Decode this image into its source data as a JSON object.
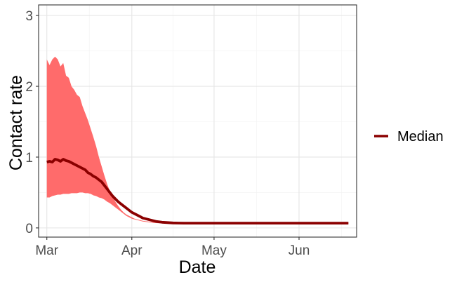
{
  "chart_data": {
    "type": "line",
    "xlabel": "Date",
    "ylabel": "Contact rate",
    "x_start": "2020-03-01",
    "xlim": [
      "2020-02-27",
      "2020-06-22"
    ],
    "ylim": [
      -0.13,
      3.15
    ],
    "x_ticks": [
      {
        "date": "2020-03-01",
        "label": "Mar"
      },
      {
        "date": "2020-04-01",
        "label": "Apr"
      },
      {
        "date": "2020-05-01",
        "label": "May"
      },
      {
        "date": "2020-06-01",
        "label": "Jun"
      }
    ],
    "y_ticks": [
      {
        "value": 0,
        "label": "0"
      },
      {
        "value": 1,
        "label": "1"
      },
      {
        "value": 2,
        "label": "2"
      },
      {
        "value": 3,
        "label": "3"
      }
    ],
    "grid": true,
    "legend": {
      "position": "right",
      "entries": [
        {
          "label": "Median",
          "color": "#8b0000"
        }
      ]
    },
    "series": [
      {
        "name": "Median",
        "color": "#8b0000",
        "band_color": "#ff6b6b",
        "x": [
          "2020-03-01",
          "2020-03-02",
          "2020-03-03",
          "2020-03-04",
          "2020-03-05",
          "2020-03-06",
          "2020-03-07",
          "2020-03-08",
          "2020-03-09",
          "2020-03-10",
          "2020-03-11",
          "2020-03-12",
          "2020-03-13",
          "2020-03-14",
          "2020-03-15",
          "2020-03-16",
          "2020-03-17",
          "2020-03-18",
          "2020-03-19",
          "2020-03-20",
          "2020-03-21",
          "2020-03-22",
          "2020-03-23",
          "2020-03-24",
          "2020-03-25",
          "2020-03-26",
          "2020-03-27",
          "2020-03-28",
          "2020-03-29",
          "2020-03-30",
          "2020-03-31",
          "2020-04-01",
          "2020-04-02",
          "2020-04-03",
          "2020-04-04",
          "2020-04-05",
          "2020-04-06",
          "2020-04-07",
          "2020-04-08",
          "2020-04-09",
          "2020-04-10",
          "2020-04-11",
          "2020-04-12",
          "2020-04-14",
          "2020-04-16",
          "2020-04-18",
          "2020-04-20",
          "2020-04-25",
          "2020-05-01",
          "2020-05-15",
          "2020-06-01",
          "2020-06-19"
        ],
        "values": [
          0.93,
          0.94,
          0.93,
          0.97,
          0.96,
          0.94,
          0.97,
          0.95,
          0.94,
          0.92,
          0.9,
          0.88,
          0.86,
          0.84,
          0.82,
          0.78,
          0.76,
          0.73,
          0.71,
          0.68,
          0.65,
          0.6,
          0.55,
          0.5,
          0.45,
          0.41,
          0.37,
          0.34,
          0.31,
          0.28,
          0.25,
          0.22,
          0.2,
          0.18,
          0.16,
          0.14,
          0.13,
          0.12,
          0.11,
          0.1,
          0.09,
          0.085,
          0.08,
          0.075,
          0.07,
          0.068,
          0.067,
          0.067,
          0.067,
          0.067,
          0.067,
          0.067
        ],
        "lower": [
          0.43,
          0.43,
          0.45,
          0.46,
          0.47,
          0.47,
          0.48,
          0.48,
          0.48,
          0.49,
          0.49,
          0.49,
          0.5,
          0.5,
          0.49,
          0.49,
          0.48,
          0.46,
          0.45,
          0.43,
          0.42,
          0.4,
          0.37,
          0.35,
          0.32,
          0.29,
          0.26,
          0.23,
          0.2,
          0.17,
          0.15,
          0.13,
          0.12,
          0.11,
          0.1,
          0.09,
          0.085,
          0.08,
          0.075,
          0.07,
          0.068,
          0.066,
          0.064,
          0.062,
          0.06,
          0.06,
          0.06,
          0.06,
          0.06,
          0.06,
          0.06,
          0.06
        ],
        "upper": [
          2.38,
          2.3,
          2.38,
          2.42,
          2.38,
          2.28,
          2.33,
          2.15,
          2.12,
          2.0,
          1.95,
          1.88,
          1.85,
          1.72,
          1.62,
          1.52,
          1.4,
          1.28,
          1.15,
          1.0,
          0.87,
          0.74,
          0.62,
          0.52,
          0.44,
          0.37,
          0.31,
          0.26,
          0.22,
          0.19,
          0.17,
          0.15,
          0.13,
          0.12,
          0.11,
          0.1,
          0.095,
          0.09,
          0.085,
          0.082,
          0.08,
          0.078,
          0.077,
          0.076,
          0.075,
          0.075,
          0.075,
          0.075,
          0.075,
          0.075,
          0.075,
          0.075
        ]
      }
    ]
  }
}
